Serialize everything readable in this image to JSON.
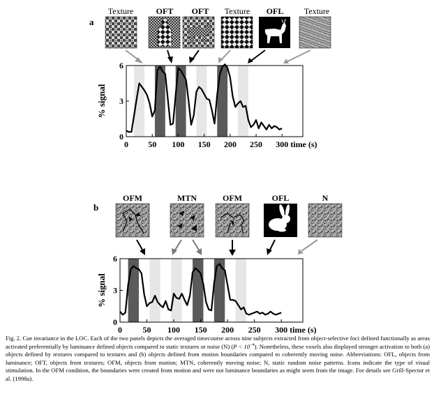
{
  "panel_a": {
    "letter": "a",
    "icons": [
      {
        "label": "Texture",
        "kind": "checker"
      },
      {
        "label": "OFT",
        "kind": "oft-bottle"
      },
      {
        "label": "OFT",
        "kind": "oft-animal"
      },
      {
        "label": "Texture",
        "kind": "diagonal-checker"
      },
      {
        "label": "OFL",
        "kind": "goat"
      },
      {
        "label": "Texture",
        "kind": "noise-texture"
      }
    ],
    "ylabel": "% signal",
    "yticks": [
      "0",
      "3",
      "6"
    ],
    "xticks": [
      "0",
      "50",
      "100",
      "150",
      "200",
      "250",
      "300"
    ],
    "xunit": "time (s)"
  },
  "panel_b": {
    "letter": "b",
    "icons": [
      {
        "label": "OFM",
        "kind": "noise-outline"
      },
      {
        "label": "MTN",
        "kind": "noise-arrows"
      },
      {
        "label": "OFM",
        "kind": "noise-outline"
      },
      {
        "label": "OFL",
        "kind": "rabbit"
      },
      {
        "label": "N",
        "kind": "noise"
      }
    ],
    "ylabel": "% signal",
    "yticks": [
      "0",
      "3",
      "6"
    ],
    "xticks": [
      "0",
      "50",
      "100",
      "150",
      "200",
      "250",
      "300"
    ],
    "xunit": "time (s)"
  },
  "chart_data": [
    {
      "type": "line",
      "panel": "a",
      "xlabel": "time (s)",
      "ylabel": "% signal",
      "xlim": [
        0,
        340
      ],
      "ylim": [
        0,
        6
      ],
      "blocks": [
        {
          "start": 15,
          "end": 35,
          "condition": "Texture",
          "shade": "light"
        },
        {
          "start": 55,
          "end": 75,
          "condition": "OFT",
          "shade": "dark"
        },
        {
          "start": 95,
          "end": 115,
          "condition": "OFT",
          "shade": "dark"
        },
        {
          "start": 135,
          "end": 155,
          "condition": "Texture",
          "shade": "light"
        },
        {
          "start": 175,
          "end": 195,
          "condition": "OFL",
          "shade": "dark"
        },
        {
          "start": 215,
          "end": 235,
          "condition": "Texture",
          "shade": "light"
        }
      ],
      "x": [
        0,
        5,
        10,
        15,
        20,
        25,
        30,
        35,
        40,
        45,
        50,
        55,
        60,
        65,
        70,
        75,
        80,
        85,
        90,
        95,
        100,
        105,
        110,
        115,
        120,
        125,
        130,
        135,
        140,
        145,
        150,
        155,
        160,
        165,
        170,
        175,
        180,
        185,
        190,
        195,
        200,
        205,
        210,
        215,
        220,
        225,
        230,
        235,
        240,
        245,
        250,
        255,
        260,
        265,
        270,
        275,
        280,
        285,
        290,
        295,
        300
      ],
      "y": [
        0.5,
        0.4,
        0.4,
        1.8,
        3.2,
        4.5,
        4.2,
        3.9,
        3.5,
        2.8,
        1.7,
        2.2,
        5.6,
        5.9,
        5.5,
        5.3,
        3.2,
        1.0,
        1.1,
        3.5,
        5.8,
        5.6,
        5.2,
        4.8,
        3.0,
        1.0,
        1.8,
        3.8,
        4.2,
        4.0,
        3.6,
        3.2,
        3.1,
        2.2,
        1.1,
        3.5,
        5.2,
        5.9,
        6.1,
        5.8,
        5.0,
        3.4,
        2.5,
        2.8,
        3.0,
        2.5,
        2.6,
        1.4,
        0.8,
        1.0,
        1.4,
        0.7,
        1.2,
        0.9,
        0.6,
        1.0,
        0.7,
        0.9,
        0.8,
        0.6,
        0.7
      ]
    },
    {
      "type": "line",
      "panel": "b",
      "xlabel": "time (s)",
      "ylabel": "% signal",
      "xlim": [
        0,
        340
      ],
      "ylim": [
        0,
        6
      ],
      "blocks": [
        {
          "start": 15,
          "end": 35,
          "condition": "OFM",
          "shade": "dark"
        },
        {
          "start": 55,
          "end": 75,
          "condition": "MTN",
          "shade": "light"
        },
        {
          "start": 95,
          "end": 115,
          "condition": "MTN",
          "shade": "light"
        },
        {
          "start": 135,
          "end": 155,
          "condition": "OFM",
          "shade": "dark"
        },
        {
          "start": 175,
          "end": 195,
          "condition": "OFL",
          "shade": "dark"
        },
        {
          "start": 215,
          "end": 235,
          "condition": "N",
          "shade": "light"
        }
      ],
      "x": [
        0,
        5,
        10,
        15,
        20,
        25,
        30,
        35,
        40,
        45,
        50,
        55,
        60,
        65,
        70,
        75,
        80,
        85,
        90,
        95,
        100,
        105,
        110,
        115,
        120,
        125,
        130,
        135,
        140,
        145,
        150,
        155,
        160,
        165,
        170,
        175,
        180,
        185,
        190,
        195,
        200,
        205,
        210,
        215,
        220,
        225,
        230,
        235,
        240,
        245,
        250,
        255,
        260,
        265,
        270,
        275,
        280,
        285,
        290,
        295,
        300
      ],
      "y": [
        1.0,
        0.7,
        0.9,
        3.5,
        5.0,
        5.3,
        5.1,
        5.0,
        4.6,
        2.6,
        1.5,
        1.8,
        1.9,
        2.5,
        1.9,
        1.6,
        1.4,
        2.0,
        1.2,
        1.1,
        2.7,
        2.3,
        2.2,
        2.7,
        2.1,
        1.6,
        2.5,
        4.7,
        5.1,
        4.9,
        4.6,
        3.6,
        1.9,
        1.2,
        1.1,
        3.7,
        5.3,
        5.5,
        5.1,
        4.9,
        3.5,
        2.1,
        2.1,
        2.0,
        1.6,
        1.2,
        1.4,
        0.8,
        0.7,
        0.8,
        0.9,
        1.0,
        0.8,
        0.9,
        0.7,
        0.8,
        1.0,
        0.8,
        0.7,
        0.8,
        0.9
      ]
    }
  ],
  "caption": {
    "text_before_p": "Fig. 2. Cue invariance in the LOC. Each of the two panels depicts the averaged timecourse across nine subjects extracted from object-selective foci defined functionally as areas activated preferentially by luminance defined objects compared to static textures or noise (N) (",
    "p_expr": "P < 10",
    "p_exponent": "−4",
    "text_after_p": "). Nonetheless, these voxels also displayed stronger activation to both (a) objects defined by textures compared to textures and (b) objects defined from motion boundaries compared to coherently moving noise. Abbreviations: OFL, objects from luminance; OFT, objects from textures; OFM, objects from motion; MTN, coherently moving noise; N, static random noise patterns. Icons indicate the type of visual stimulation. In the OFM condition, the boundaries were created from motion and were not luminance boundaries as might seem from the image. For details see Grill-Spector et al. (1998a)."
  }
}
